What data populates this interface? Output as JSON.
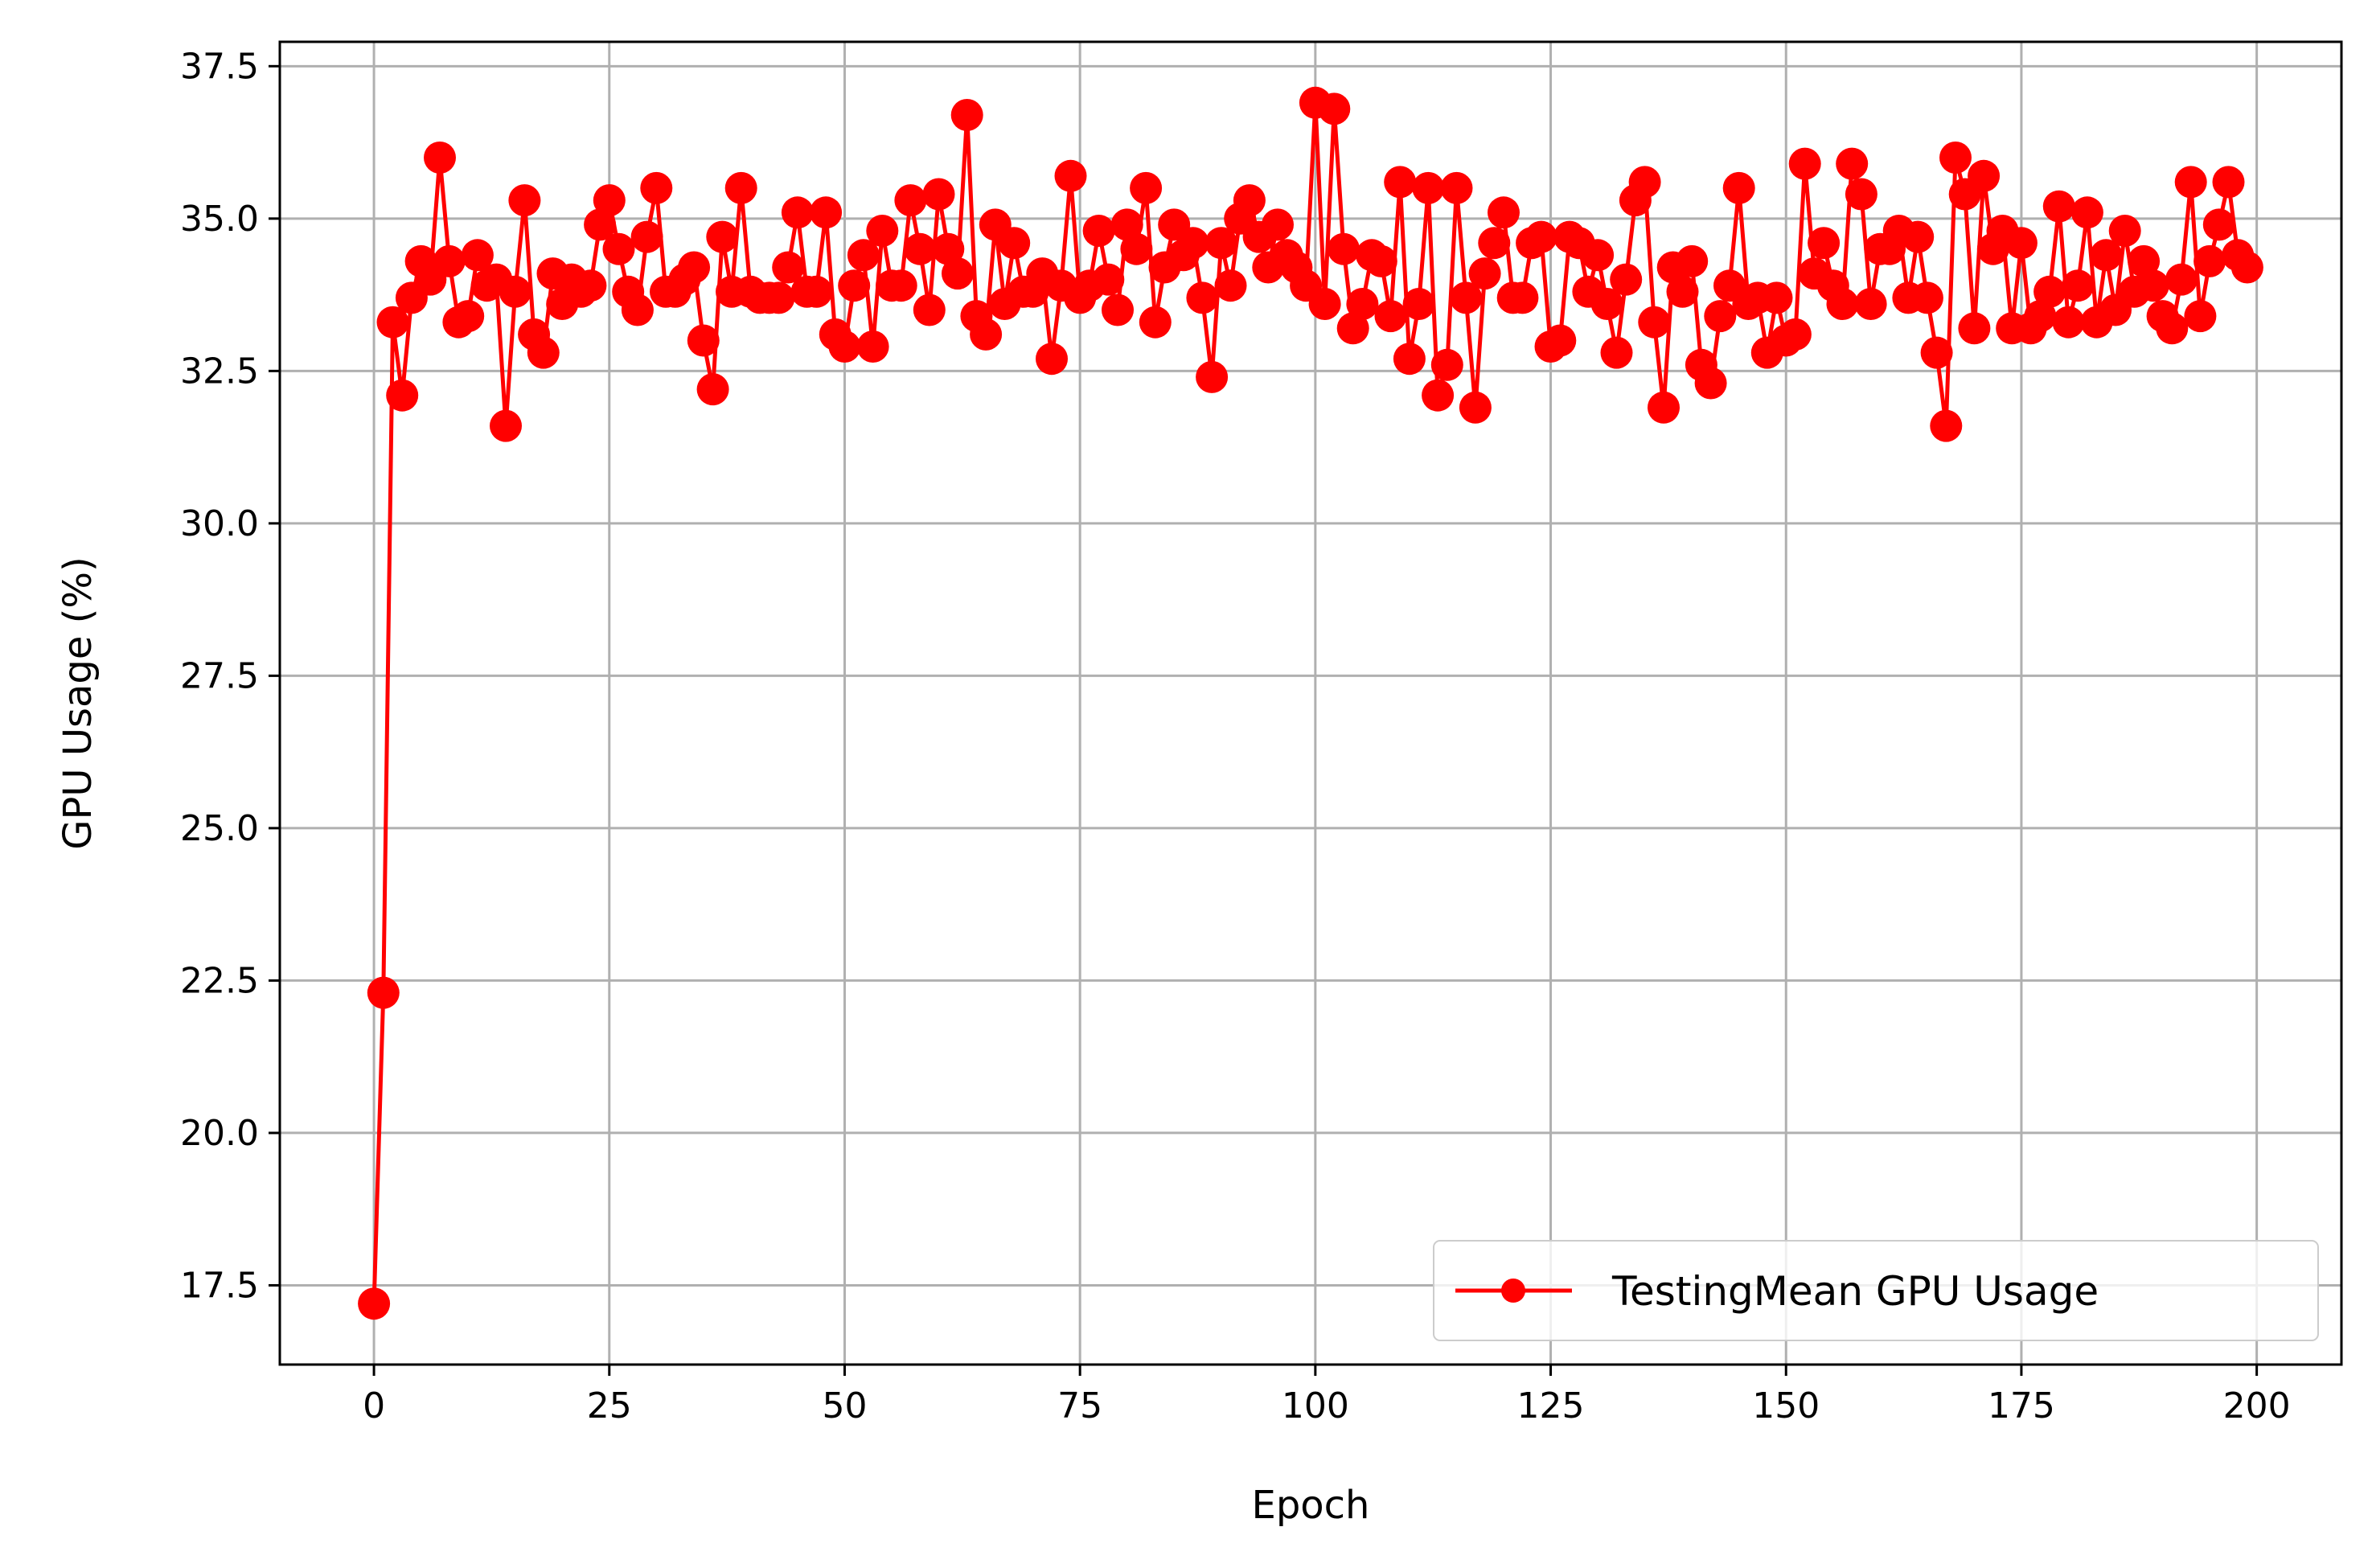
{
  "colors": {
    "series": "#ff0000",
    "grid": "#b0b0b0",
    "axes": "#000000",
    "background": "#ffffff"
  },
  "chart_data": {
    "type": "line",
    "title": "",
    "xlabel": "Epoch",
    "ylabel": "GPU Usage (%)",
    "xlim": [
      -10,
      209
    ],
    "ylim": [
      16.2,
      37.9
    ],
    "xticks": [
      0,
      25,
      50,
      75,
      100,
      125,
      150,
      175,
      200
    ],
    "xtick_labels": [
      "0",
      "25",
      "50",
      "75",
      "100",
      "125",
      "150",
      "175",
      "200"
    ],
    "yticks": [
      17.5,
      20.0,
      22.5,
      25.0,
      27.5,
      30.0,
      32.5,
      35.0,
      37.5
    ],
    "ytick_labels": [
      "17.5",
      "20.0",
      "22.5",
      "25.0",
      "27.5",
      "30.0",
      "32.5",
      "35.0",
      "37.5"
    ],
    "grid": true,
    "legend_position": "bottom-right",
    "marker": "circle",
    "series": [
      {
        "name": "TestingMean GPU Usage",
        "color": "#ff0000",
        "x": [
          0,
          1,
          2,
          3,
          4,
          5,
          6,
          7,
          8,
          9,
          10,
          11,
          12,
          13,
          14,
          15,
          16,
          17,
          18,
          19,
          20,
          21,
          22,
          23,
          24,
          25,
          26,
          27,
          28,
          29,
          30,
          31,
          32,
          33,
          34,
          35,
          36,
          37,
          38,
          39,
          40,
          41,
          42,
          43,
          44,
          45,
          46,
          47,
          48,
          49,
          50,
          51,
          52,
          53,
          54,
          55,
          56,
          57,
          58,
          59,
          60,
          61,
          62,
          63,
          64,
          65,
          66,
          67,
          68,
          69,
          70,
          71,
          72,
          73,
          74,
          75,
          76,
          77,
          78,
          79,
          80,
          81,
          82,
          83,
          84,
          85,
          86,
          87,
          88,
          89,
          90,
          91,
          92,
          93,
          94,
          95,
          96,
          97,
          98,
          99,
          100,
          101,
          102,
          103,
          104,
          105,
          106,
          107,
          108,
          109,
          110,
          111,
          112,
          113,
          114,
          115,
          116,
          117,
          118,
          119,
          120,
          121,
          122,
          123,
          124,
          125,
          126,
          127,
          128,
          129,
          130,
          131,
          132,
          133,
          134,
          135,
          136,
          137,
          138,
          139,
          140,
          141,
          142,
          143,
          144,
          145,
          146,
          147,
          148,
          149,
          150,
          151,
          152,
          153,
          154,
          155,
          156,
          157,
          158,
          159,
          160,
          161,
          162,
          163,
          164,
          165,
          166,
          167,
          168,
          169,
          170,
          171,
          172,
          173,
          174,
          175,
          176,
          177,
          178,
          179,
          180,
          181,
          182,
          183,
          184,
          185,
          186,
          187,
          188,
          189,
          190,
          191,
          192,
          193,
          194,
          195,
          196,
          197,
          198,
          199
        ],
        "values": [
          17.2,
          22.3,
          33.3,
          32.1,
          33.7,
          34.3,
          34.0,
          36.0,
          34.3,
          33.3,
          33.4,
          34.4,
          33.9,
          34.0,
          31.6,
          33.8,
          35.3,
          33.1,
          32.8,
          34.1,
          33.6,
          34.0,
          33.8,
          33.9,
          34.9,
          35.3,
          34.5,
          33.8,
          33.5,
          34.7,
          35.5,
          33.8,
          33.8,
          34.0,
          34.2,
          33.0,
          32.2,
          34.7,
          33.8,
          35.5,
          33.8,
          33.7,
          33.7,
          33.7,
          34.2,
          35.1,
          33.8,
          33.8,
          35.1,
          33.1,
          32.9,
          33.9,
          34.4,
          32.9,
          34.8,
          33.9,
          33.9,
          35.3,
          34.5,
          33.5,
          35.4,
          34.5,
          34.1,
          36.7,
          33.4,
          33.1,
          34.9,
          33.6,
          34.6,
          33.8,
          33.8,
          34.1,
          32.7,
          33.9,
          35.7,
          33.7,
          33.9,
          34.8,
          34.0,
          33.5,
          34.9,
          34.5,
          35.5,
          33.3,
          34.2,
          34.9,
          34.4,
          34.6,
          33.7,
          32.4,
          34.6,
          33.9,
          35.0,
          35.3,
          34.7,
          34.2,
          34.9,
          34.4,
          34.2,
          33.9,
          36.9,
          33.6,
          36.8,
          34.5,
          33.2,
          33.6,
          34.4,
          34.3,
          33.4,
          35.6,
          32.7,
          33.6,
          35.5,
          32.1,
          32.6,
          35.5,
          33.7,
          31.9,
          34.1,
          34.6,
          35.1,
          33.7,
          33.7,
          34.6,
          34.7,
          32.9,
          33.0,
          34.7,
          34.6,
          33.8,
          34.4,
          33.6,
          32.8,
          34.0,
          35.3,
          35.6,
          33.3,
          31.9,
          34.2,
          33.8,
          34.3,
          32.6,
          32.3,
          33.4,
          33.9,
          35.5,
          33.6,
          33.7,
          32.8,
          33.7,
          33.0,
          33.1,
          35.9,
          34.1,
          34.6,
          33.9,
          33.6,
          35.9,
          35.4,
          33.6,
          34.5,
          34.5,
          34.8,
          33.7,
          34.7,
          33.7,
          32.8,
          31.6,
          36.0,
          35.4,
          33.2,
          35.7,
          34.5,
          34.8,
          33.2,
          34.6,
          33.2,
          33.4,
          33.8,
          35.2,
          33.3,
          33.9,
          35.1,
          33.3,
          34.4,
          33.5,
          34.8,
          33.8,
          34.3,
          33.9,
          33.4,
          33.2,
          34.0,
          35.6,
          33.4,
          34.3,
          34.9,
          35.6,
          34.4,
          34.2
        ]
      }
    ]
  }
}
